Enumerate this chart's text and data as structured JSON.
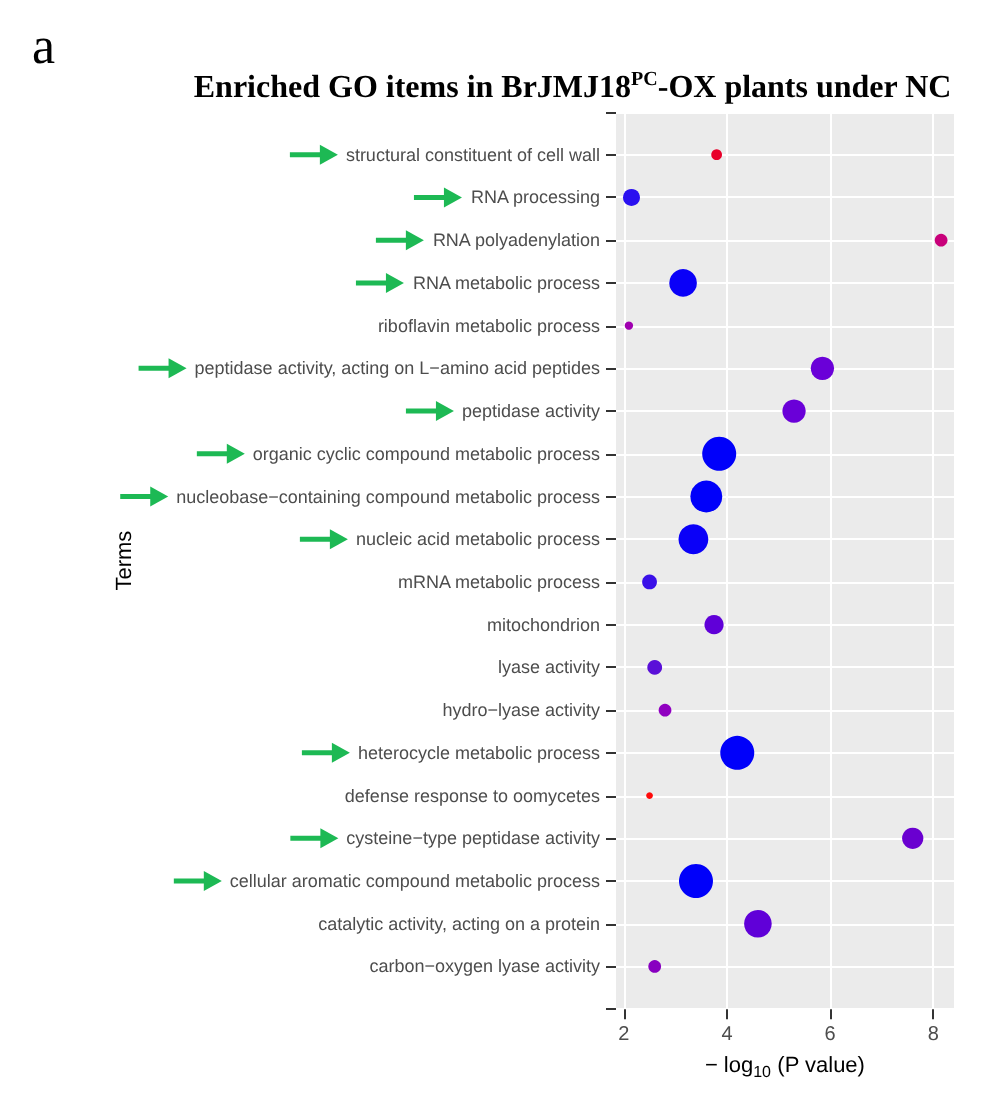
{
  "chart_data": {
    "type": "bubble",
    "title": "Enriched GO items in BrJMJ18$^{PC}$-OX plants under NC",
    "xlabel": "− log$_{10}$ (P value)",
    "ylabel": "Terms",
    "annotations": [
      "a"
    ],
    "categories": [
      "structural constituent of cell wall",
      "RNA processing",
      "RNA polyadenylation",
      "RNA metabolic process",
      "riboflavin metabolic process",
      "peptidase activity, acting on L−amino acid peptides",
      "peptidase activity",
      "organic cyclic compound metabolic process",
      "nucleobase−containing compound metabolic process",
      "nucleic acid metabolic process",
      "mRNA metabolic process",
      "mitochondrion",
      "lyase activity",
      "hydro−lyase activity",
      "heterocycle metabolic process",
      "defense response to oomycetes",
      "cysteine−type peptidase activity",
      "cellular aromatic compound metabolic process",
      "catalytic activity, acting on a protein",
      "carbon−oxygen lyase activity"
    ],
    "values": [
      3.8,
      2.15,
      8.15,
      3.15,
      2.1,
      5.85,
      5.3,
      3.85,
      3.6,
      3.35,
      2.5,
      3.75,
      2.6,
      2.8,
      4.2,
      2.5,
      7.6,
      3.4,
      4.6,
      2.6
    ],
    "sizes": [
      0.1,
      0.25,
      0.14,
      0.66,
      0.06,
      0.47,
      0.47,
      1,
      0.88,
      0.77,
      0.19,
      0.32,
      0.19,
      0.14,
      1,
      0.04,
      0.39,
      1,
      0.66,
      0.14
    ],
    "colors": [
      "#e8002a",
      "#2a10f0",
      "#c8007a",
      "#0a00f8",
      "#a000b0",
      "#6a00d8",
      "#6a00d8",
      "#0000fa",
      "#0000fa",
      "#0a00f8",
      "#3a10e8",
      "#6000d8",
      "#5a10d8",
      "#9000c0",
      "#0000fa",
      "#ff0a0a",
      "#6a00d0",
      "#0000fa",
      "#6000d8",
      "#8800c0"
    ],
    "orientation": "horizontal",
    "xlim": [
      1.85,
      8.4
    ],
    "xticks": [
      2,
      4,
      6,
      8
    ],
    "grid": true
  }
}
